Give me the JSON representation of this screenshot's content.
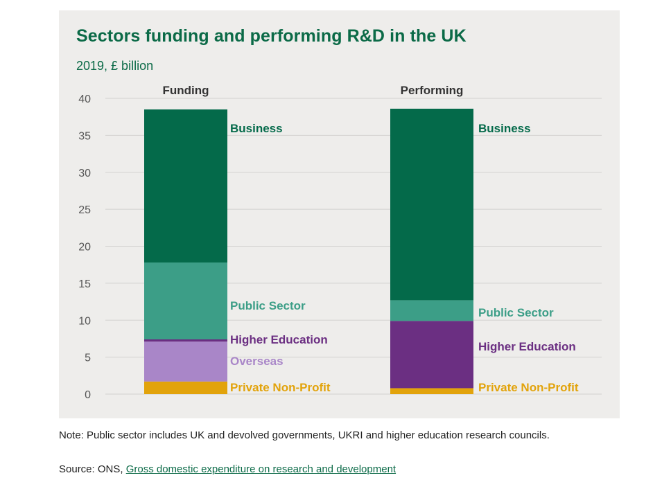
{
  "title": "Sectors funding and performing R&D in the UK",
  "subtitle": "2019, £ billion",
  "note": "Note: Public sector includes UK and devolved governments, UKRI and higher education research councils.",
  "source": {
    "prefix": "Source: ONS, ",
    "link_text": "Gross domestic expenditure on research and development"
  },
  "colors": {
    "business": "#046a4a",
    "public_sector": "#3c9e87",
    "higher_education": "#6b2f82",
    "overseas": "#a986c8",
    "private_non_profit": "#e2a30b",
    "title": "#0b6a47"
  },
  "chart_data": {
    "type": "bar",
    "stacked": true,
    "categories": [
      "Funding",
      "Performing"
    ],
    "ylim": [
      0,
      40
    ],
    "yticks": [
      0,
      5,
      10,
      15,
      20,
      25,
      30,
      35,
      40
    ],
    "grid": true,
    "series": [
      {
        "name": "Private Non-Profit",
        "color": "#e2a30b",
        "values": [
          1.7,
          0.8
        ]
      },
      {
        "name": "Overseas",
        "color": "#a986c8",
        "values": [
          5.4,
          0
        ]
      },
      {
        "name": "Higher Education",
        "color": "#6b2f82",
        "values": [
          0.3,
          9.1
        ]
      },
      {
        "name": "Public Sector",
        "color": "#3c9e87",
        "values": [
          10.4,
          2.8
        ]
      },
      {
        "name": "Business",
        "color": "#046a4a",
        "values": [
          20.7,
          25.9
        ]
      }
    ]
  }
}
